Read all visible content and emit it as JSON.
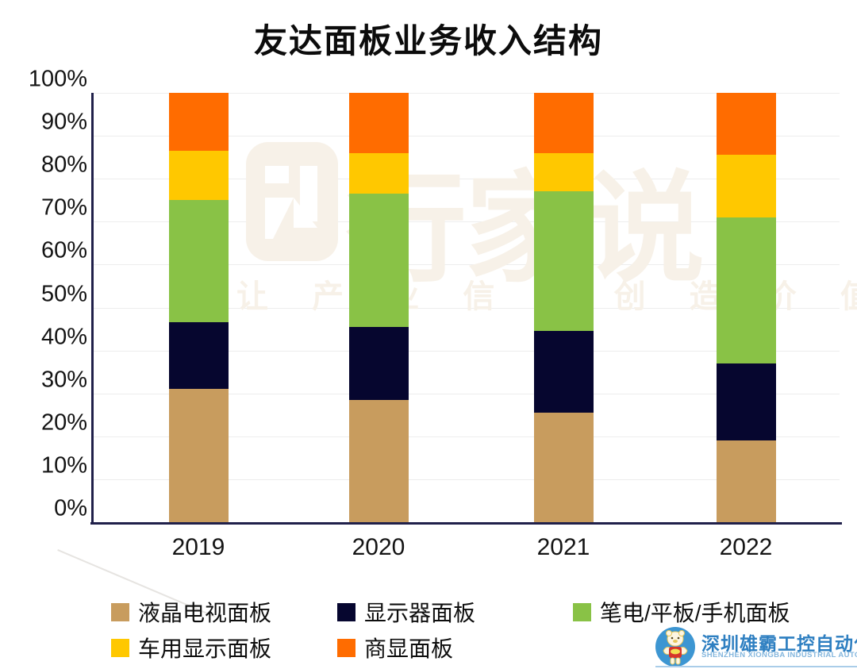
{
  "title": "友达面板业务收入结构",
  "watermark": {
    "brand": "行家说",
    "tagline": "让 产 业 信 息 创 造 价 值"
  },
  "footer": {
    "company_cn": "深圳雄霸工控自动化",
    "company_en": "SHENZHEN XIONGBA INDUSTRIAL AUTOMATION",
    "badge_color": "#3d96d2"
  },
  "colors": {
    "axis": "#20204a",
    "gridline": "#ededed",
    "watermark": "#f7f1e8",
    "title_text": "#0c0c0c",
    "footer_blue": "#2e7fc1"
  },
  "chart_data": {
    "type": "bar",
    "stacked": true,
    "percent": true,
    "title": "友达面板业务收入结构",
    "categories": [
      "2019",
      "2020",
      "2021",
      "2022"
    ],
    "series": [
      {
        "name": "液晶电视面板",
        "color": "#c89c5e",
        "values": [
          31,
          28.5,
          25.5,
          19
        ]
      },
      {
        "name": "显示器面板",
        "color": "#06062f",
        "values": [
          15.5,
          17,
          19,
          18
        ]
      },
      {
        "name": "笔电/平板/手机面板",
        "color": "#89c246",
        "values": [
          28.5,
          31,
          32.5,
          34
        ]
      },
      {
        "name": "车用显示面板",
        "color": "#ffc800",
        "values": [
          11.5,
          9.5,
          9,
          14.5
        ]
      },
      {
        "name": "商显面板",
        "color": "#ff6c00",
        "values": [
          13.5,
          14,
          14,
          14.5
        ]
      }
    ],
    "xlabel": "",
    "ylabel": "",
    "ylim": [
      0,
      100
    ],
    "ytick_step": 10,
    "ytick_labels": [
      "0%",
      "10%",
      "20%",
      "30%",
      "40%",
      "50%",
      "60%",
      "70%",
      "80%",
      "90%",
      "100%"
    ],
    "grid": "horizontal",
    "legend_position": "bottom"
  }
}
